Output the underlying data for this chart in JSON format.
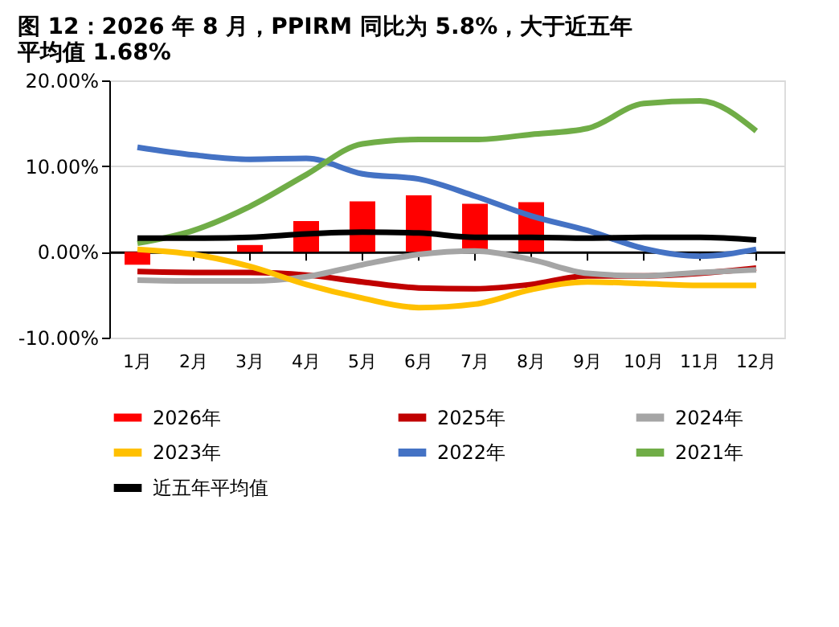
{
  "chart_data": {
    "type": "line",
    "title": [
      "图 12：2026 年 8 月，PPIRM 同比为 5.8%，大于近五年",
      "平均值 1.68%"
    ],
    "categories": [
      "1月",
      "2月",
      "3月",
      "4月",
      "5月",
      "6月",
      "7月",
      "8月",
      "9月",
      "10月",
      "11月",
      "12月"
    ],
    "series": [
      {
        "name": "2026年",
        "type": "bar",
        "color": "#ff0000",
        "values": [
          -1.5,
          0.0,
          0.8,
          3.6,
          5.9,
          6.6,
          5.6,
          5.8,
          null,
          null,
          null,
          null
        ]
      },
      {
        "name": "2025年",
        "color": "#c00000",
        "values": [
          -2.3,
          -2.4,
          -2.4,
          -2.7,
          -3.5,
          -4.2,
          -4.3,
          -3.8,
          -2.8,
          -2.8,
          -2.5,
          -1.9
        ]
      },
      {
        "name": "2024年",
        "color": "#a5a5a5",
        "values": [
          -3.3,
          -3.4,
          -3.4,
          -2.9,
          -1.5,
          -0.3,
          0.1,
          -0.9,
          -2.5,
          -2.8,
          -2.4,
          -2.1
        ]
      },
      {
        "name": "2023年",
        "color": "#ffc000",
        "values": [
          0.3,
          -0.3,
          -1.7,
          -3.8,
          -5.4,
          -6.5,
          -6.1,
          -4.4,
          -3.5,
          -3.7,
          -3.9,
          -3.9
        ]
      },
      {
        "name": "2022年",
        "color": "#4472c4",
        "values": [
          12.2,
          11.3,
          10.8,
          10.9,
          9.1,
          8.5,
          6.5,
          4.2,
          2.5,
          0.4,
          -0.5,
          0.3
        ]
      },
      {
        "name": "2021年",
        "color": "#70ad47",
        "values": [
          1.0,
          2.5,
          5.3,
          9.0,
          12.6,
          13.1,
          13.1,
          13.7,
          14.4,
          17.3,
          17.6,
          14.1
        ]
      },
      {
        "name": "近五年平均值",
        "color": "#000000",
        "values": [
          1.6,
          1.6,
          1.7,
          2.1,
          2.3,
          2.2,
          1.7,
          1.7,
          1.6,
          1.7,
          1.7,
          1.4
        ]
      }
    ],
    "ylim": [
      -10,
      20
    ],
    "yticks": [
      {
        "value": -10,
        "label": "-10.00%"
      },
      {
        "value": 0,
        "label": "0.00%"
      },
      {
        "value": 10,
        "label": "10.00%"
      },
      {
        "value": 20,
        "label": "20.00%"
      }
    ],
    "grid": "y",
    "legend": "bottom"
  }
}
